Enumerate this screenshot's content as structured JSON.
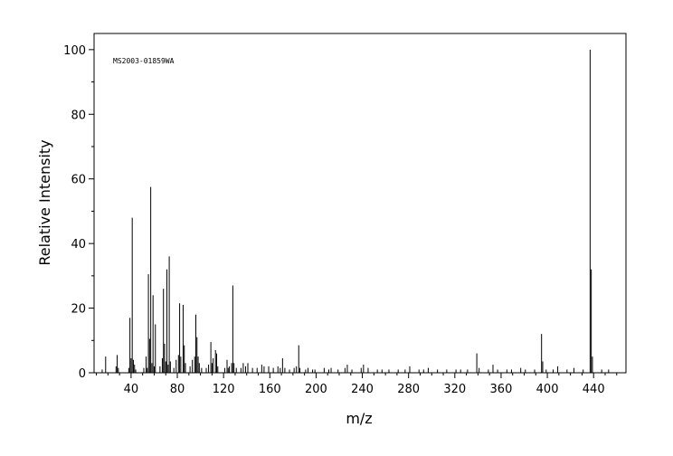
{
  "chart_data": {
    "type": "bar",
    "annotation": "MS2003-01859WA",
    "xlabel": "m/z",
    "ylabel": "Relative Intensity",
    "xlim": [
      8,
      468
    ],
    "ylim": [
      0,
      105
    ],
    "x_major_ticks": [
      40,
      80,
      120,
      160,
      200,
      240,
      280,
      320,
      360,
      400,
      440
    ],
    "x_minor_step": 10,
    "y_major_ticks": [
      0,
      20,
      40,
      60,
      80,
      100
    ],
    "y_minor_step": 10,
    "grid": false,
    "legend": "none",
    "bar_color": "#000000",
    "peaks": [
      [
        15,
        1.0
      ],
      [
        18,
        5.0
      ],
      [
        27,
        2.0
      ],
      [
        28,
        5.5
      ],
      [
        29,
        1.5
      ],
      [
        38,
        1.5
      ],
      [
        39,
        17.0
      ],
      [
        40,
        4.5
      ],
      [
        41,
        48.0
      ],
      [
        42,
        4.0
      ],
      [
        43,
        2.5
      ],
      [
        44,
        1.0
      ],
      [
        51,
        1.5
      ],
      [
        53,
        5.0
      ],
      [
        54,
        1.5
      ],
      [
        55,
        30.5
      ],
      [
        56,
        10.5
      ],
      [
        57,
        57.5
      ],
      [
        58,
        3.0
      ],
      [
        59,
        24.0
      ],
      [
        60,
        2.0
      ],
      [
        61,
        15.0
      ],
      [
        65,
        2.0
      ],
      [
        67,
        4.5
      ],
      [
        68,
        26.0
      ],
      [
        69,
        9.0
      ],
      [
        70,
        3.5
      ],
      [
        71,
        32.0
      ],
      [
        72,
        2.5
      ],
      [
        73,
        36.0
      ],
      [
        74,
        3.5
      ],
      [
        77,
        1.5
      ],
      [
        79,
        4.0
      ],
      [
        81,
        5.5
      ],
      [
        82,
        21.5
      ],
      [
        83,
        5.0
      ],
      [
        85,
        21.0
      ],
      [
        86,
        8.5
      ],
      [
        87,
        3.0
      ],
      [
        91,
        2.0
      ],
      [
        93,
        4.0
      ],
      [
        95,
        5.0
      ],
      [
        96,
        18.0
      ],
      [
        97,
        11.0
      ],
      [
        98,
        5.0
      ],
      [
        99,
        3.0
      ],
      [
        101,
        1.5
      ],
      [
        105,
        1.5
      ],
      [
        107,
        2.5
      ],
      [
        109,
        9.5
      ],
      [
        110,
        3.0
      ],
      [
        111,
        4.5
      ],
      [
        113,
        7.0
      ],
      [
        114,
        6.0
      ],
      [
        115,
        2.0
      ],
      [
        121,
        1.5
      ],
      [
        123,
        4.0
      ],
      [
        124,
        1.5
      ],
      [
        125,
        2.0
      ],
      [
        127,
        3.0
      ],
      [
        128,
        27.0
      ],
      [
        129,
        3.0
      ],
      [
        131,
        1.5
      ],
      [
        135,
        1.5
      ],
      [
        137,
        3.0
      ],
      [
        139,
        2.0
      ],
      [
        141,
        3.0
      ],
      [
        145,
        1.5
      ],
      [
        149,
        1.5
      ],
      [
        153,
        2.5
      ],
      [
        155,
        2.0
      ],
      [
        159,
        2.0
      ],
      [
        163,
        1.5
      ],
      [
        167,
        2.0
      ],
      [
        169,
        1.5
      ],
      [
        171,
        4.5
      ],
      [
        173,
        1.5
      ],
      [
        177,
        1.0
      ],
      [
        181,
        1.5
      ],
      [
        183,
        2.0
      ],
      [
        185,
        8.5
      ],
      [
        186,
        1.5
      ],
      [
        191,
        1.0
      ],
      [
        193,
        1.5
      ],
      [
        197,
        1.0
      ],
      [
        199,
        1.0
      ],
      [
        207,
        1.5
      ],
      [
        211,
        1.0
      ],
      [
        213,
        1.5
      ],
      [
        219,
        1.0
      ],
      [
        225,
        1.5
      ],
      [
        227,
        2.5
      ],
      [
        231,
        1.0
      ],
      [
        239,
        1.5
      ],
      [
        241,
        2.5
      ],
      [
        245,
        1.5
      ],
      [
        253,
        1.0
      ],
      [
        257,
        1.0
      ],
      [
        263,
        1.0
      ],
      [
        271,
        1.0
      ],
      [
        277,
        1.0
      ],
      [
        281,
        2.0
      ],
      [
        289,
        1.0
      ],
      [
        293,
        1.0
      ],
      [
        297,
        1.5
      ],
      [
        305,
        1.0
      ],
      [
        313,
        1.0
      ],
      [
        321,
        1.0
      ],
      [
        325,
        1.0
      ],
      [
        331,
        1.0
      ],
      [
        339,
        6.0
      ],
      [
        341,
        1.5
      ],
      [
        349,
        1.0
      ],
      [
        353,
        2.5
      ],
      [
        357,
        1.0
      ],
      [
        365,
        1.0
      ],
      [
        369,
        1.0
      ],
      [
        377,
        1.5
      ],
      [
        381,
        1.0
      ],
      [
        389,
        1.0
      ],
      [
        395,
        12.0
      ],
      [
        396,
        3.5
      ],
      [
        399,
        1.0
      ],
      [
        405,
        1.0
      ],
      [
        409,
        2.0
      ],
      [
        417,
        1.0
      ],
      [
        423,
        1.5
      ],
      [
        431,
        1.0
      ],
      [
        437,
        100.0
      ],
      [
        438,
        32.0
      ],
      [
        439,
        5.0
      ],
      [
        447,
        1.0
      ],
      [
        453,
        1.0
      ]
    ]
  }
}
